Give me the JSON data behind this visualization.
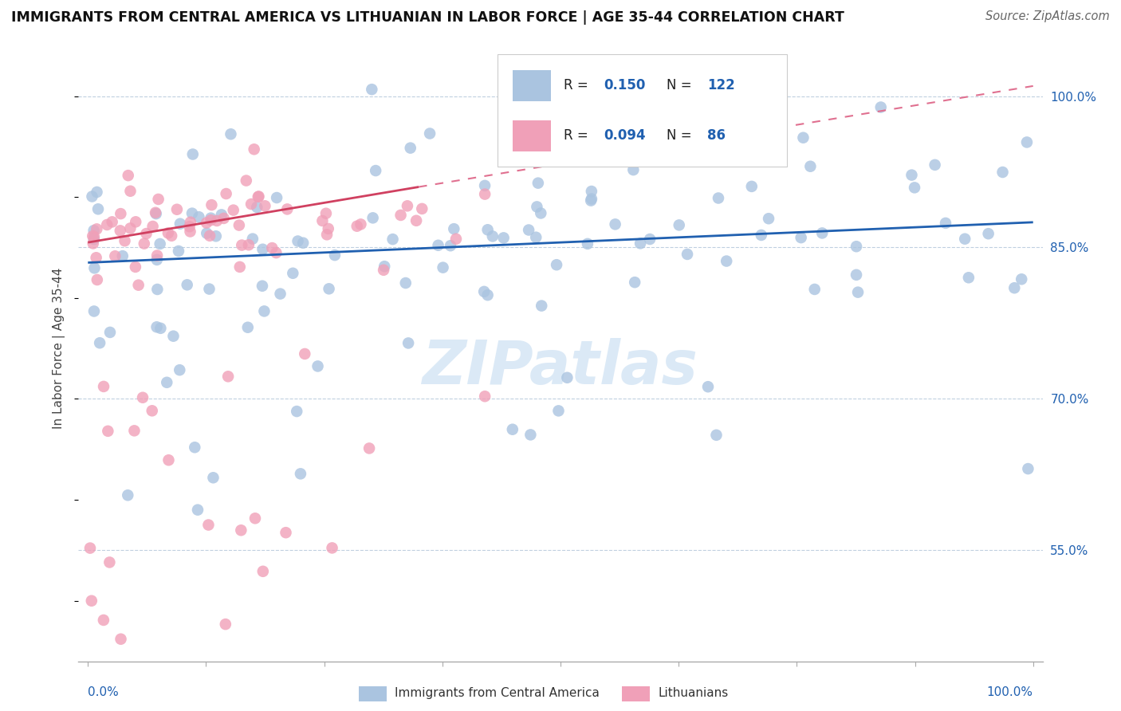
{
  "title": "IMMIGRANTS FROM CENTRAL AMERICA VS LITHUANIAN IN LABOR FORCE | AGE 35-44 CORRELATION CHART",
  "source": "Source: ZipAtlas.com",
  "ylabel": "In Labor Force | Age 35-44",
  "right_yticks": [
    55.0,
    70.0,
    85.0,
    100.0
  ],
  "legend_blue_label": "Immigrants from Central America",
  "legend_pink_label": "Lithuanians",
  "R_blue": 0.15,
  "N_blue": 122,
  "R_pink": 0.094,
  "N_pink": 86,
  "blue_color": "#aac4e0",
  "blue_line_color": "#2060b0",
  "pink_color": "#f0a0b8",
  "pink_line_color": "#d04060",
  "pink_dash_color": "#e07090",
  "watermark_color": "#b8d4ee",
  "background_color": "#ffffff",
  "grid_color": "#c0d0e0",
  "ylim_min": 0.44,
  "ylim_max": 1.06,
  "xlim_min": -0.01,
  "xlim_max": 1.01
}
